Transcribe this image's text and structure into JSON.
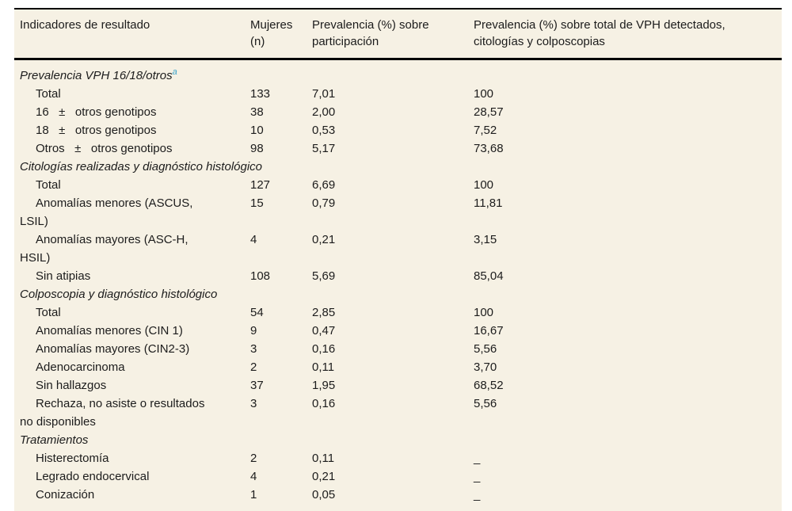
{
  "colors": {
    "page_background": "#ffffff",
    "table_background": "#f6f1e4",
    "rule": "#000000",
    "text": "#1c1c1c",
    "footnote_accent": "#3ba4ca"
  },
  "table": {
    "columns": [
      {
        "label": "Indicadores de resultado"
      },
      {
        "label": "Mujeres (n)"
      },
      {
        "label": "Prevalencia (%) sobre participación"
      },
      {
        "label": "Prevalencia (%) sobre total de VPH detectados, citologías y colposcopias"
      }
    ],
    "rows": [
      {
        "type": "section",
        "label": "Prevalencia VPH 16/18/otros",
        "footnote": "a"
      },
      {
        "type": "item",
        "label": "Total",
        "n": "133",
        "prev_participacion": "7,01",
        "prev_total": "100"
      },
      {
        "type": "item",
        "label": "16   ±   otros genotipos",
        "n": "38",
        "prev_participacion": "2,00",
        "prev_total": "28,57"
      },
      {
        "type": "item",
        "label": "18   ±   otros genotipos",
        "n": "10",
        "prev_participacion": "0,53",
        "prev_total": "7,52"
      },
      {
        "type": "item",
        "label": "Otros   ±   otros genotipos",
        "n": "98",
        "prev_participacion": "5,17",
        "prev_total": "73,68"
      },
      {
        "type": "section",
        "label": "Citologías realizadas y diagnóstico histológico"
      },
      {
        "type": "item",
        "label": "Total",
        "n": "127",
        "prev_participacion": "6,69",
        "prev_total": "100"
      },
      {
        "type": "item",
        "label": "Anomalías menores (ASCUS,\nLSIL)",
        "n": "15",
        "prev_participacion": "0,79",
        "prev_total": "11,81"
      },
      {
        "type": "item",
        "label": "Anomalías mayores (ASC-H,\nHSIL)",
        "n": "4",
        "prev_participacion": "0,21",
        "prev_total": "3,15"
      },
      {
        "type": "item",
        "label": "Sin atipias",
        "n": "108",
        "prev_participacion": "5,69",
        "prev_total": "85,04"
      },
      {
        "type": "section",
        "label": "Colposcopia y diagnóstico histológico"
      },
      {
        "type": "item",
        "label": "Total",
        "n": "54",
        "prev_participacion": "2,85",
        "prev_total": "100"
      },
      {
        "type": "item",
        "label": "Anomalías menores (CIN 1)",
        "n": "9",
        "prev_participacion": "0,47",
        "prev_total": "16,67"
      },
      {
        "type": "item",
        "label": "Anomalías mayores (CIN2-3)",
        "n": "3",
        "prev_participacion": "0,16",
        "prev_total": "5,56"
      },
      {
        "type": "item",
        "label": "Adenocarcinoma",
        "n": "2",
        "prev_participacion": "0,11",
        "prev_total": "3,70"
      },
      {
        "type": "item",
        "label": "Sin hallazgos",
        "n": "37",
        "prev_participacion": "1,95",
        "prev_total": "68,52"
      },
      {
        "type": "item",
        "label": "Rechaza, no asiste o resultados\nno disponibles",
        "n": "3",
        "prev_participacion": "0,16",
        "prev_total": "5,56"
      },
      {
        "type": "section",
        "label": "Tratamientos"
      },
      {
        "type": "item",
        "label": "Histerectomía",
        "n": "2",
        "prev_participacion": "0,11",
        "prev_total": "_"
      },
      {
        "type": "item",
        "label": "Legrado endocervical",
        "n": "4",
        "prev_participacion": "0,21",
        "prev_total": "_"
      },
      {
        "type": "item",
        "label": "Conización",
        "n": "1",
        "prev_participacion": "0,05",
        "prev_total": "_"
      }
    ]
  }
}
